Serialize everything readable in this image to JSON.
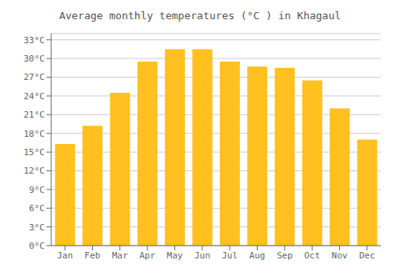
{
  "chart_data": {
    "type": "bar",
    "title": "Average monthly temperatures (°C ) in Khagaul",
    "categories": [
      "Jan",
      "Feb",
      "Mar",
      "Apr",
      "May",
      "Jun",
      "Jul",
      "Aug",
      "Sep",
      "Oct",
      "Nov",
      "Dec"
    ],
    "values": [
      16.3,
      19.2,
      24.5,
      29.5,
      31.5,
      31.5,
      29.5,
      28.7,
      28.5,
      26.5,
      22.0,
      17.0
    ],
    "color": "#FFC020",
    "ylim": [
      0,
      34
    ],
    "yticks": [
      {
        "value": 0,
        "label": "0°C"
      },
      {
        "value": 3,
        "label": "3°C"
      },
      {
        "value": 6,
        "label": "6°C"
      },
      {
        "value": 9,
        "label": "9°C"
      },
      {
        "value": 12,
        "label": "12°C"
      },
      {
        "value": 15,
        "label": "15°C"
      },
      {
        "value": 18,
        "label": "18°C"
      },
      {
        "value": 21,
        "label": "21°C"
      },
      {
        "value": 24,
        "label": "24°C"
      },
      {
        "value": 27,
        "label": "27°C"
      },
      {
        "value": 30,
        "label": "30°C"
      },
      {
        "value": 33,
        "label": "33°C"
      }
    ],
    "grid": true
  }
}
